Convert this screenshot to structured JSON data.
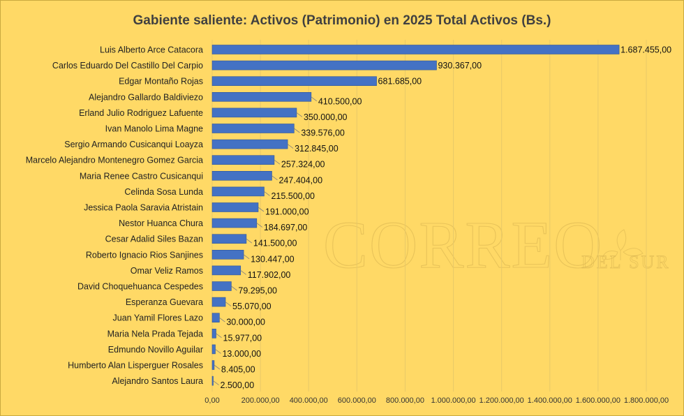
{
  "chart_data": {
    "type": "bar",
    "orientation": "horizontal",
    "title": "Gabiente saliente: Activos (Patrimonio) en 2025 Total Activos (Bs.)",
    "categories": [
      "Luis Alberto Arce Catacora",
      "Carlos Eduardo Del Castillo Del Carpio",
      "Edgar Montaño Rojas",
      "Alejandro Gallardo Baldiviezo",
      "Erland Julio Rodriguez Lafuente",
      "Ivan Manolo Lima Magne",
      "Sergio Armando Cusicanqui Loayza",
      "Marcelo Alejandro Montenegro Gomez Garcia",
      "Maria Renee Castro Cusicanqui",
      "Celinda Sosa Lunda",
      "Jessica Paola Saravia Atristain",
      "Nestor Huanca Chura",
      "Cesar Adalid Siles Bazan",
      "Roberto Ignacio Rios Sanjines",
      "Omar Veliz Ramos",
      "David Choquehuanca Cespedes",
      "Esperanza Guevara",
      "Juan Yamil Flores Lazo",
      "Maria Nela Prada Tejada",
      "Edmundo Novillo Aguilar",
      "Humberto Alan Lisperguer Rosales",
      "Alejandro Santos Laura"
    ],
    "values": [
      1687455,
      930367,
      681685,
      410500,
      350000,
      339576,
      312845,
      257324,
      247404,
      215500,
      191000,
      184697,
      141500,
      130447,
      117902,
      79295,
      55070,
      30000,
      15977,
      13000,
      8405,
      2500
    ],
    "value_labels": [
      "1.687.455,00",
      "930.367,00",
      "681.685,00",
      "410.500,00",
      "350.000,00",
      "339.576,00",
      "312.845,00",
      "257.324,00",
      "247.404,00",
      "215.500,00",
      "191.000,00",
      "184.697,00",
      "141.500,00",
      "130.447,00",
      "117.902,00",
      "79.295,00",
      "55.070,00",
      "30.000,00",
      "15.977,00",
      "13.000,00",
      "8.405,00",
      "2.500,00"
    ],
    "xlim": [
      0,
      1800000
    ],
    "x_ticks": [
      0,
      200000,
      400000,
      600000,
      800000,
      1000000,
      1200000,
      1400000,
      1600000,
      1800000
    ],
    "x_tick_labels": [
      "0,00",
      "200.000,00",
      "400.000,00",
      "600.000,00",
      "800.000,00",
      "1.000.000,00",
      "1.200.000,00",
      "1.400.000,00",
      "1.600.000,00",
      "1.800.000,00"
    ],
    "xlabel": "",
    "ylabel": "",
    "grid": true,
    "legend": "none"
  },
  "colors": {
    "background": "#FFD966",
    "bar_fill": "#4472C4",
    "bar_stroke": "#2F5597"
  },
  "watermark": {
    "main": "CORREO",
    "sub": "DEL SUR"
  }
}
